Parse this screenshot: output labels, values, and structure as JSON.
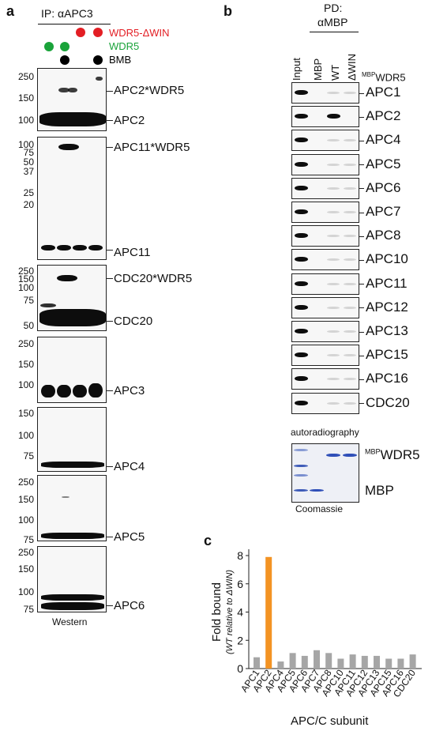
{
  "panel_a": {
    "label": "a",
    "ip_label": "IP: αAPC3",
    "legend": [
      {
        "text": "WDR5-ΔWIN",
        "color": "#e31e24"
      },
      {
        "text": "WDR5",
        "color": "#1aa33a"
      },
      {
        "text": "BMB",
        "color": "#000000"
      }
    ],
    "blots": [
      {
        "markers": [
          "250",
          "150",
          "100"
        ],
        "labels": [
          "APC2*WDR5",
          "APC2"
        ]
      },
      {
        "markers": [
          "100",
          "75",
          "50",
          "37",
          "25",
          "20"
        ],
        "labels": [
          "APC11*WDR5",
          "APC11"
        ]
      },
      {
        "markers": [
          "250",
          "150",
          "100",
          "75",
          "50"
        ],
        "labels": [
          "CDC20*WDR5",
          "CDC20"
        ]
      },
      {
        "markers": [
          "250",
          "150",
          "100"
        ],
        "labels": [
          "APC3"
        ]
      },
      {
        "markers": [
          "150",
          "100",
          "75"
        ],
        "labels": [
          "APC4"
        ]
      },
      {
        "markers": [
          "250",
          "150",
          "100",
          "75"
        ],
        "labels": [
          "APC5"
        ]
      },
      {
        "markers": [
          "250",
          "150",
          "100",
          "75"
        ],
        "labels": [
          "APC6"
        ]
      }
    ],
    "footer": "Western"
  },
  "panel_b": {
    "label": "b",
    "pd_line1": "PD:",
    "pd_line2": "αMBP",
    "columns": [
      "Input",
      "MBP",
      "WT",
      "ΔWIN"
    ],
    "wdr5_header_sup": "MBP",
    "wdr5_header": "WDR5",
    "rows": [
      "APC1",
      "APC2",
      "APC4",
      "APC5",
      "APC6",
      "APC7",
      "APC8",
      "APC10",
      "APC11",
      "APC12",
      "APC13",
      "APC15",
      "APC16",
      "CDC20"
    ],
    "autoradiography": "autoradiography",
    "coomassie_labels": {
      "sup": "MBP",
      "wdr5": "WDR5",
      "mbp": "MBP"
    },
    "coomassie": "Coomassie"
  },
  "panel_c": {
    "label": "c",
    "chart_data": {
      "type": "bar",
      "categories": [
        "APC1",
        "APC2",
        "APC4",
        "APC5",
        "APC6",
        "APC7",
        "APC8",
        "APC10",
        "APC11",
        "APC12",
        "APC13",
        "APC15",
        "APC16",
        "CDC20"
      ],
      "values": [
        0.8,
        7.9,
        0.5,
        1.1,
        0.9,
        1.3,
        1.1,
        0.7,
        1.0,
        0.9,
        0.9,
        0.7,
        0.7,
        1.0
      ],
      "highlight_category": "APC2",
      "bar_color": "#a6a6a6",
      "highlight_color": "#f39323",
      "ylabel": "Fold bound",
      "ylabel_sub": "(WT relative to ΔWIN)",
      "xlabel": "APC/C subunit",
      "ylim": [
        0,
        8
      ],
      "yticks": [
        "0",
        "2",
        "4",
        "6",
        "8"
      ]
    }
  }
}
